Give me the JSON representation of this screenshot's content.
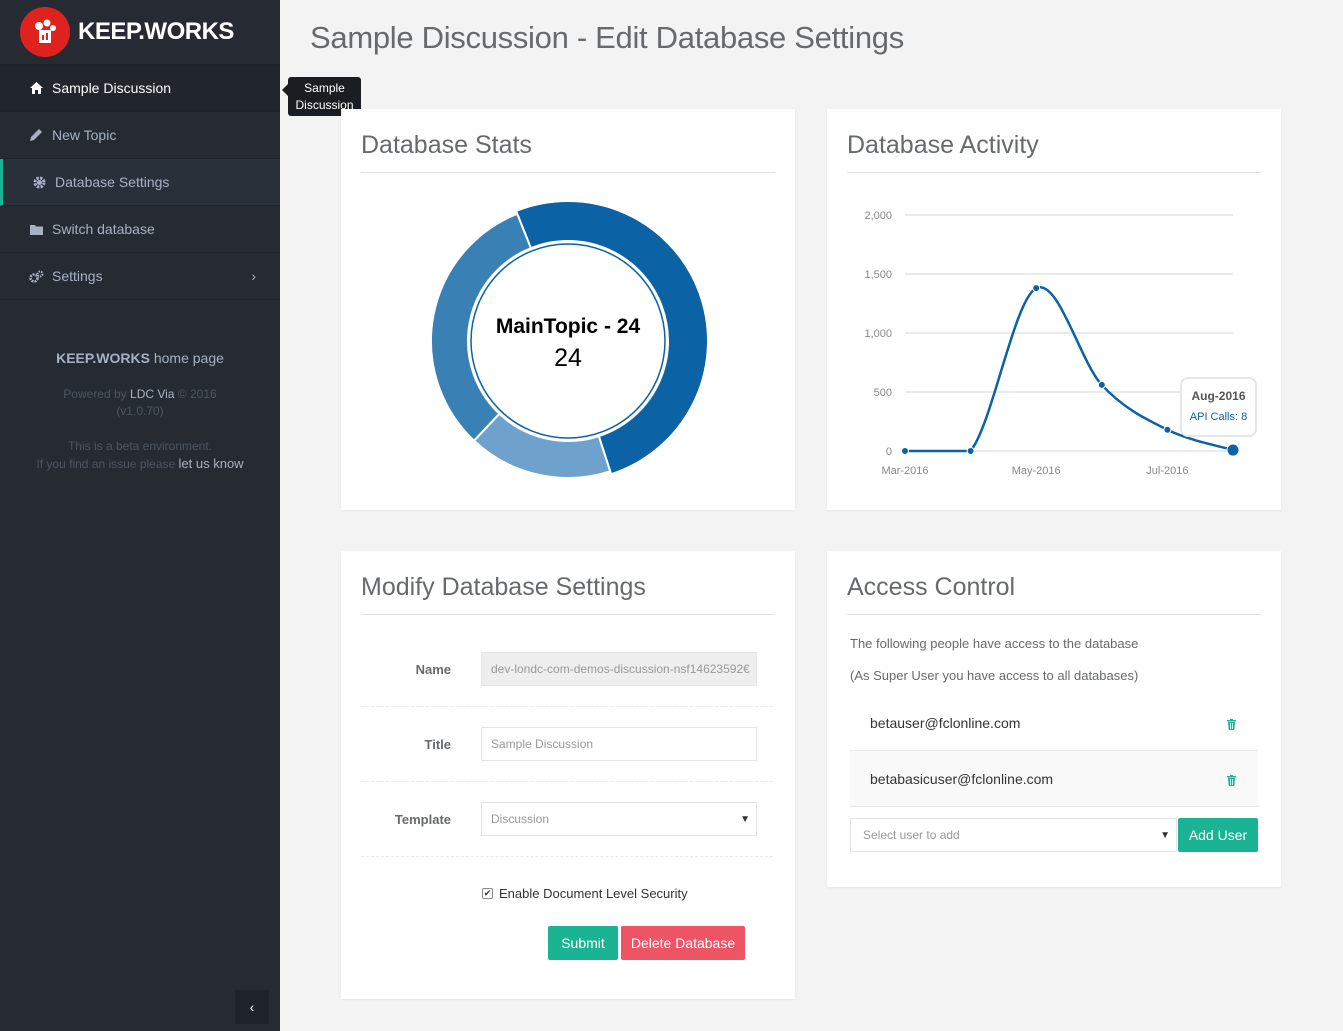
{
  "brand": {
    "name": "KEEP.WORKS"
  },
  "sidebar": {
    "items": [
      {
        "label": "Sample Discussion",
        "icon": "home-icon"
      },
      {
        "label": "New Topic",
        "icon": "pencil-icon"
      },
      {
        "label": "Database Settings",
        "icon": "gear-icon"
      },
      {
        "label": "Switch database",
        "icon": "folder-icon"
      },
      {
        "label": "Settings",
        "icon": "gears-icon"
      }
    ],
    "home_brand": "KEEP.WORKS",
    "home_suffix": "home page",
    "powered_prefix": "Powered by",
    "powered_link": "LDC Via",
    "powered_year": "© 2016",
    "version": "(v1.0.70)",
    "beta_line1": "This is a beta environment.",
    "beta_line2": "If you find an issue please",
    "beta_link": "let us know"
  },
  "tooltip": {
    "line1": "Sample",
    "line2": "Discussion"
  },
  "page": {
    "title": "Sample Discussion - Edit Database Settings"
  },
  "stats": {
    "title": "Database Stats",
    "center_label": "MainTopic - 24",
    "center_value": "24"
  },
  "activity": {
    "title": "Database Activity",
    "tooltip_date": "Aug-2016",
    "tooltip_value": "API Calls: 8"
  },
  "chart_data": [
    {
      "type": "pie",
      "title": "",
      "slices": [
        {
          "value": 24,
          "color": "#0b62a4"
        },
        {
          "value": 8,
          "color": "#6ea1cc"
        },
        {
          "value": 15,
          "color": "#3980b5"
        }
      ]
    },
    {
      "type": "line",
      "title": "",
      "x": [
        "Mar-2016",
        "Apr-2016",
        "May-2016",
        "Jun-2016",
        "Jul-2016",
        "Aug-2016"
      ],
      "x_tick_labels": [
        "Mar-2016",
        "May-2016",
        "Jul-2016"
      ],
      "series": [
        {
          "values": [
            0,
            0,
            1380,
            560,
            180,
            8
          ],
          "color": "#0b62a4"
        }
      ],
      "ylim": [
        0,
        2000
      ],
      "y_ticks": [
        "0",
        "500",
        "1,000",
        "1,500",
        "2,000"
      ],
      "grid": true
    }
  ],
  "modify": {
    "title": "Modify Database Settings",
    "name_label": "Name",
    "name_value": "dev-londc-com-demos-discussion-nsf14623592€",
    "title_label": "Title",
    "title_value": "Sample Discussion",
    "template_label": "Template",
    "template_value": "Discussion",
    "dls_label": "Enable Document Level Security",
    "submit": "Submit",
    "delete": "Delete Database"
  },
  "access": {
    "title": "Access Control",
    "intro": "The following people have access to the database",
    "superuser": "(As Super User you have access to all databases)",
    "users": [
      "betauser@fclonline.com",
      "betabasicuser@fclonline.com"
    ],
    "select_placeholder": "Select user to add",
    "add_button": "Add User"
  }
}
